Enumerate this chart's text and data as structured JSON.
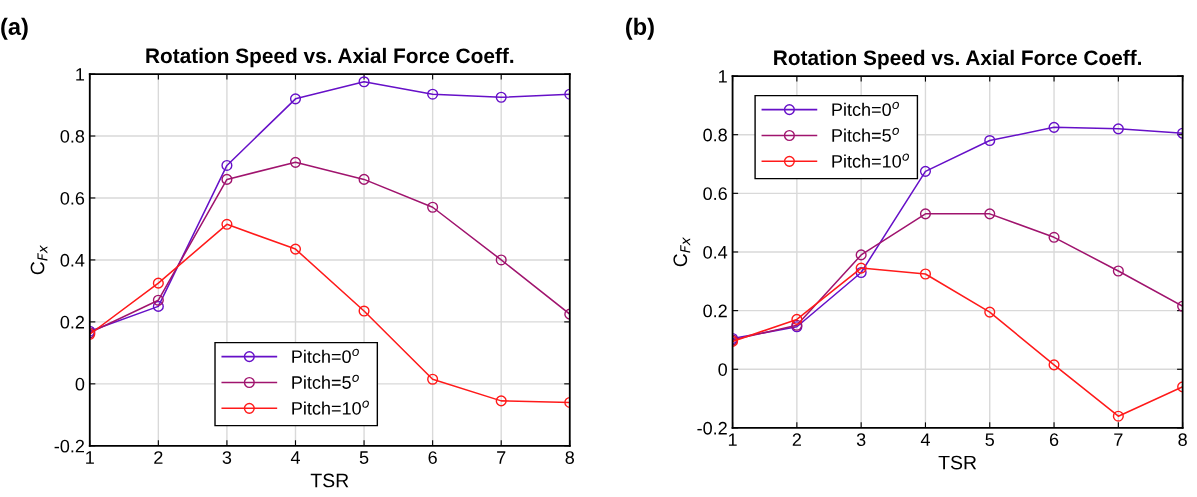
{
  "chart_data": [
    {
      "type": "line",
      "title": "Rotation Speed vs. Axial Force Coeff.",
      "xlabel": "TSR",
      "ylabel": "C$_{Fx}$",
      "annotations": [
        "(a)"
      ],
      "x": [
        1,
        2,
        3,
        4,
        5,
        6,
        7,
        8
      ],
      "series": [
        {
          "name": "Pitch=0$^{o}$",
          "color": "#6610c8",
          "values": [
            0.17,
            0.25,
            0.705,
            0.92,
            0.975,
            0.935,
            0.925,
            0.935
          ]
        },
        {
          "name": "Pitch=5$^{o}$",
          "color": "#a0146e",
          "values": [
            0.165,
            0.27,
            0.66,
            0.715,
            0.66,
            0.57,
            0.4,
            0.225
          ]
        },
        {
          "name": "Pitch=10$^{o}$",
          "color": "#ff1a1a",
          "values": [
            0.16,
            0.325,
            0.515,
            0.435,
            0.235,
            0.015,
            -0.055,
            -0.06
          ]
        }
      ],
      "xlim": [
        1,
        8
      ],
      "xticks": [
        1,
        2,
        3,
        4,
        5,
        6,
        7,
        8
      ],
      "ylim": [
        -0.2,
        1
      ],
      "yticks": [
        -0.2,
        0,
        0.2,
        0.4,
        0.6,
        0.8,
        1
      ],
      "grid": true,
      "legend": "bottom",
      "marker": "circle",
      "line_style": "solid"
    },
    {
      "type": "line",
      "title": "Rotation Speed vs. Axial Force Coeff.",
      "xlabel": "TSR",
      "ylabel": "C$_{Fx}$",
      "annotations": [
        "(b)"
      ],
      "x": [
        1,
        2,
        3,
        4,
        5,
        6,
        7,
        8
      ],
      "series": [
        {
          "name": "Pitch=0$^{o}$",
          "color": "#6610c8",
          "values": [
            0.105,
            0.145,
            0.33,
            0.675,
            0.78,
            0.825,
            0.82,
            0.805
          ]
        },
        {
          "name": "Pitch=5$^{o}$",
          "color": "#a0146e",
          "values": [
            0.1,
            0.15,
            0.39,
            0.53,
            0.53,
            0.45,
            0.335,
            0.215
          ]
        },
        {
          "name": "Pitch=10$^{o}$",
          "color": "#ff1a1a",
          "values": [
            0.095,
            0.17,
            0.345,
            0.325,
            0.195,
            0.015,
            -0.16,
            -0.06
          ]
        }
      ],
      "xlim": [
        1,
        8
      ],
      "xticks": [
        1,
        2,
        3,
        4,
        5,
        6,
        7,
        8
      ],
      "ylim": [
        -0.2,
        1
      ],
      "yticks": [
        -0.2,
        0,
        0.2,
        0.4,
        0.6,
        0.8,
        1
      ],
      "grid": true,
      "legend": "top left",
      "marker": "circle",
      "line_style": "solid"
    }
  ]
}
